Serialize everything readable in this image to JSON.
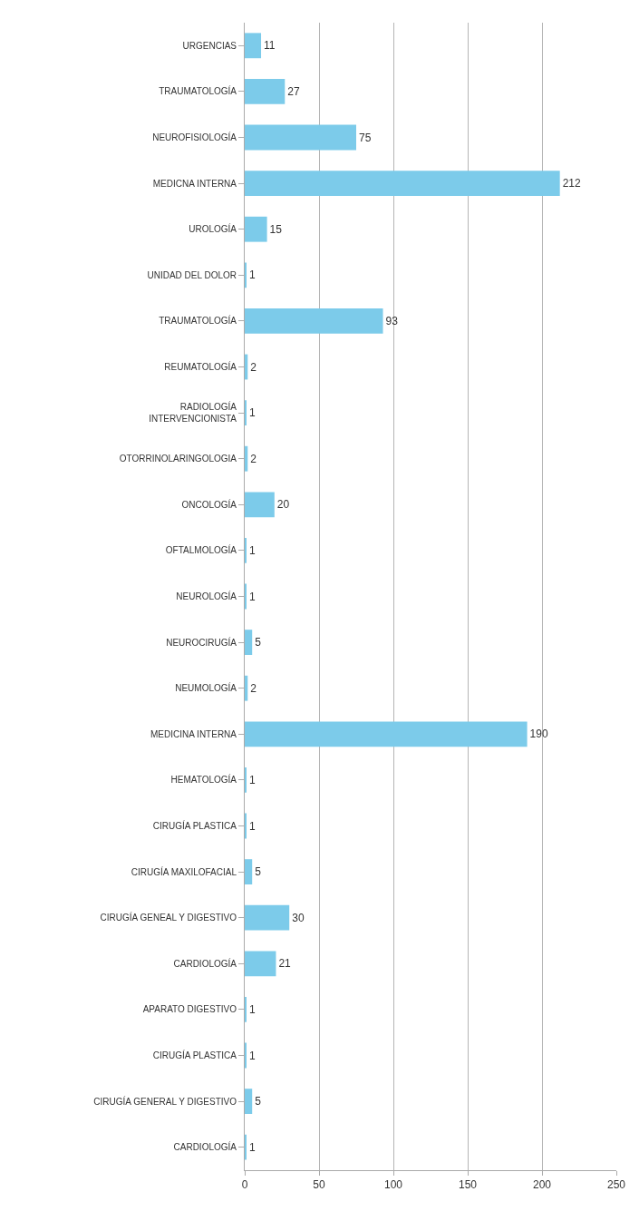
{
  "chart_data": {
    "type": "bar",
    "orientation": "horizontal",
    "categories": [
      "URGENCIAS",
      "TRAUMATOLOGÍA",
      "NEUROFISIOLOGÍA",
      "MEDICNA INTERNA",
      "UROLOGÍA",
      "UNIDAD DEL DOLOR",
      "TRAUMATOLOGÍA",
      "REUMATOLOGÍA",
      "RADIOLOGÍA\nINTERVENCIONISTA",
      "OTORRINOLARINGOLOGIA",
      "ONCOLOGÍA",
      "OFTALMOLOGÍA",
      "NEUROLOGÍA",
      "NEUROCIRUGÍA",
      "NEUMOLOGÍA",
      "MEDICINA INTERNA",
      "HEMATOLOGÍA",
      "CIRUGÍA PLASTICA",
      "CIRUGÍA MAXILOFACIAL",
      "CIRUGÍA GENEAL Y DIGESTIVO",
      "CARDIOLOGÍA",
      "APARATO DIGESTIVO",
      "CIRUGÍA PLASTICA",
      "CIRUGÍA GENERAL Y DIGESTIVO",
      "CARDIOLOGÍA"
    ],
    "values": [
      11,
      27,
      75,
      212,
      15,
      1,
      93,
      2,
      1,
      2,
      20,
      1,
      1,
      5,
      2,
      190,
      1,
      1,
      5,
      30,
      21,
      1,
      1,
      5,
      1
    ],
    "color": "#7ccbea",
    "xlim": [
      0,
      250
    ],
    "xticks": [
      0,
      50,
      100,
      150,
      200,
      250
    ],
    "grid": "x",
    "data_labels": true
  }
}
